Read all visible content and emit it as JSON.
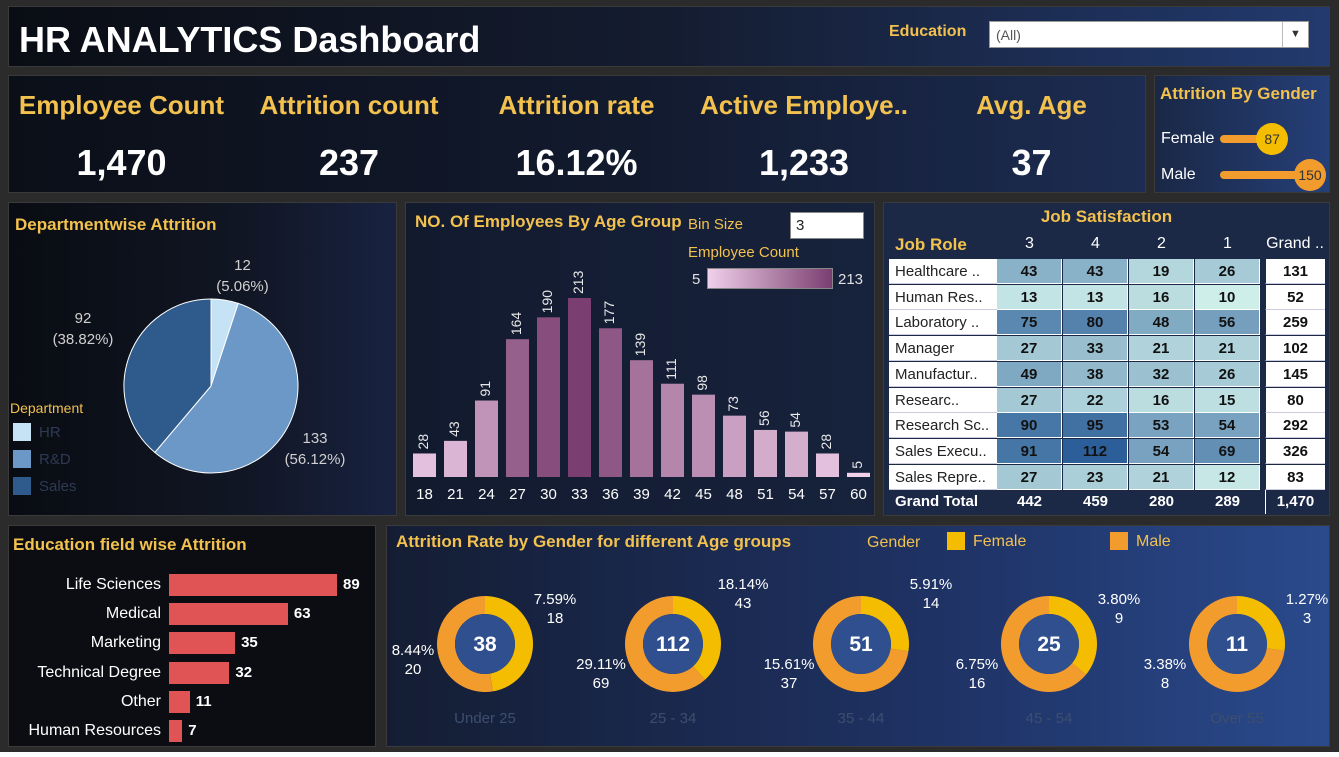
{
  "header": {
    "title": "HR ANALYTICS Dashboard",
    "education_label": "Education",
    "education_value": "(All)"
  },
  "kpis": [
    {
      "label": "Employee Count",
      "value": "1,470"
    },
    {
      "label": "Attrition count",
      "value": "237"
    },
    {
      "label": "Attrition rate",
      "value": "16.12%"
    },
    {
      "label": "Active Employe..",
      "value": "1,233"
    },
    {
      "label": "Avg. Age",
      "value": "37"
    }
  ],
  "colors": {
    "gold": "#f2c14e",
    "hr": "#c6e2f5",
    "rd": "#6b98c6",
    "sales": "#2e5a8c",
    "female": "#f5bd02",
    "male": "#f39c2e",
    "edu_bar": "#e05455",
    "donut_center": "#2f4f8f"
  },
  "chart_data": [
    {
      "id": "gender",
      "type": "bar",
      "title": "Attrition By Gender",
      "categories": [
        "Female",
        "Male"
      ],
      "values": [
        87,
        150
      ],
      "value_labels": [
        "87",
        "150"
      ]
    },
    {
      "id": "dept",
      "type": "pie",
      "title": "Departmentwise Attrition",
      "legend_title": "Department",
      "categories": [
        "HR",
        "R&D",
        "Sales"
      ],
      "values": [
        12,
        133,
        92
      ],
      "percents": [
        "(5.06%)",
        "(56.12%)",
        "(38.82%)"
      ],
      "value_labels": [
        "12",
        "133",
        "92"
      ]
    },
    {
      "id": "age",
      "type": "bar",
      "title": "NO. Of Employees By Age Group",
      "bin_size_label": "Bin Size",
      "bin_size": "3",
      "legend_title": "Employee Count",
      "legend_min": "5",
      "legend_max": "213",
      "categories": [
        "18",
        "21",
        "24",
        "27",
        "30",
        "33",
        "36",
        "39",
        "42",
        "45",
        "48",
        "51",
        "54",
        "57",
        "60"
      ],
      "values": [
        28,
        43,
        91,
        164,
        190,
        213,
        177,
        139,
        111,
        98,
        73,
        56,
        54,
        28,
        5
      ],
      "value_labels": [
        "28",
        "43",
        "91",
        "164",
        "190",
        "213",
        "177",
        "139",
        "111",
        "98",
        "73",
        "56",
        "54",
        "28",
        "5"
      ]
    },
    {
      "id": "job",
      "type": "table",
      "title": "Job Satisfaction",
      "row_header": "Job Role",
      "columns": [
        "3",
        "4",
        "2",
        "1",
        "Grand .."
      ],
      "rows": [
        {
          "role": "Healthcare ..",
          "values": [
            "43",
            "43",
            "19",
            "26"
          ],
          "total": "131"
        },
        {
          "role": "Human Res..",
          "values": [
            "13",
            "13",
            "16",
            "10"
          ],
          "total": "52"
        },
        {
          "role": "Laboratory ..",
          "values": [
            "75",
            "80",
            "48",
            "56"
          ],
          "total": "259"
        },
        {
          "role": "Manager",
          "values": [
            "27",
            "33",
            "21",
            "21"
          ],
          "total": "102"
        },
        {
          "role": "Manufactur..",
          "values": [
            "49",
            "38",
            "32",
            "26"
          ],
          "total": "145"
        },
        {
          "role": "Researc..",
          "values": [
            "27",
            "22",
            "16",
            "15"
          ],
          "total": "80"
        },
        {
          "role": "Research Sc..",
          "values": [
            "90",
            "95",
            "53",
            "54"
          ],
          "total": "292"
        },
        {
          "role": "Sales Execu..",
          "values": [
            "91",
            "112",
            "54",
            "69"
          ],
          "total": "326"
        },
        {
          "role": "Sales Repre..",
          "values": [
            "27",
            "23",
            "21",
            "12"
          ],
          "total": "83"
        }
      ],
      "footer_label": "Grand Total",
      "footer_values": [
        "442",
        "459",
        "280",
        "289",
        "1,470"
      ]
    },
    {
      "id": "edu",
      "type": "bar",
      "title": "Education field wise Attrition",
      "categories": [
        "Life Sciences",
        "Medical",
        "Marketing",
        "Technical Degree",
        "Other",
        "Human Resources"
      ],
      "values": [
        89,
        63,
        35,
        32,
        11,
        7
      ],
      "value_labels": [
        "89",
        "63",
        "35",
        "32",
        "11",
        "7"
      ]
    },
    {
      "id": "donut",
      "type": "pie",
      "title": "Attrition Rate by Gender for different Age groups",
      "legend_title": "Gender",
      "legend": [
        "Female",
        "Male"
      ],
      "groups": [
        {
          "label": "Under 25",
          "total": "38",
          "female": 18,
          "male": 20,
          "female_pct": "7.59%",
          "female_cnt": "18",
          "male_pct": "8.44%",
          "male_cnt": "20"
        },
        {
          "label": "25 - 34",
          "total": "112",
          "female": 43,
          "male": 69,
          "female_pct": "18.14%",
          "female_cnt": "43",
          "male_pct": "29.11%",
          "male_cnt": "69"
        },
        {
          "label": "35 - 44",
          "total": "51",
          "female": 14,
          "male": 37,
          "female_pct": "5.91%",
          "female_cnt": "14",
          "male_pct": "15.61%",
          "male_cnt": "37"
        },
        {
          "label": "45 - 54",
          "total": "25",
          "female": 9,
          "male": 16,
          "female_pct": "3.80%",
          "female_cnt": "9",
          "male_pct": "6.75%",
          "male_cnt": "16"
        },
        {
          "label": "Over 55",
          "total": "11",
          "female": 3,
          "male": 8,
          "female_pct": "1.27%",
          "female_cnt": "3",
          "male_pct": "3.38%",
          "male_cnt": "8"
        }
      ]
    }
  ]
}
